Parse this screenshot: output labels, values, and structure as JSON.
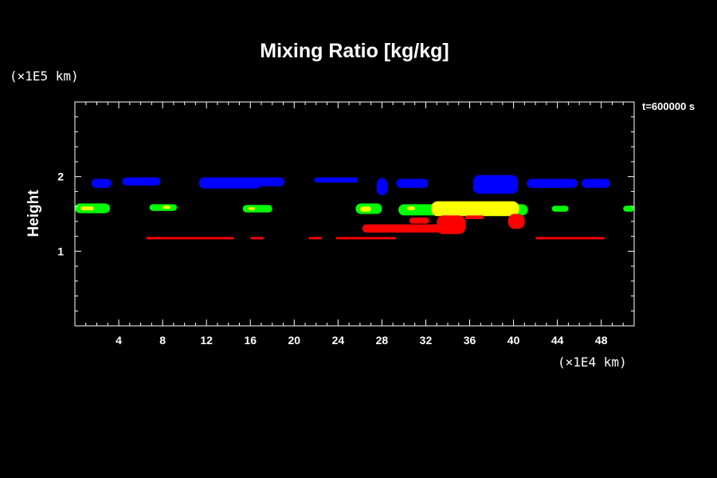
{
  "chart_data": {
    "type": "heatmap",
    "title": "Mixing Ratio [kg/kg]",
    "ylabel": "Height",
    "x_unit_label": "(×1E4 km)",
    "y_unit_label": "(×1E5 km)",
    "time_label": "t=600000 s",
    "xlim": [
      0,
      51
    ],
    "ylim": [
      0,
      3
    ],
    "x_ticks": [
      "4",
      "8",
      "12",
      "16",
      "20",
      "24",
      "28",
      "32",
      "36",
      "40",
      "44",
      "48"
    ],
    "y_ticks": [
      "1",
      "2"
    ],
    "colors": {
      "background": "#000000",
      "axis": "#ffffff",
      "level1": "#ff0000",
      "level2": "#00ff00",
      "level3": "#ffff00",
      "level4": "#0000ff"
    },
    "regions": [
      {
        "color": "#0000ff",
        "x": [
          1.5,
          3.3
        ],
        "y": [
          1.85,
          1.97
        ]
      },
      {
        "color": "#0000ff",
        "x": [
          4.3,
          7.8
        ],
        "y": [
          1.88,
          1.99
        ]
      },
      {
        "color": "#0000ff",
        "x": [
          11.3,
          17.0
        ],
        "y": [
          1.84,
          1.99
        ]
      },
      {
        "color": "#0000ff",
        "x": [
          16.3,
          19.1
        ],
        "y": [
          1.87,
          1.99
        ]
      },
      {
        "color": "#0000ff",
        "x": [
          21.8,
          25.8
        ],
        "y": [
          1.92,
          1.99
        ]
      },
      {
        "color": "#0000ff",
        "x": [
          27.5,
          28.5
        ],
        "y": [
          1.75,
          1.98
        ]
      },
      {
        "color": "#0000ff",
        "x": [
          29.3,
          32.2
        ],
        "y": [
          1.85,
          1.97
        ]
      },
      {
        "color": "#0000ff",
        "x": [
          36.3,
          40.4
        ],
        "y": [
          1.77,
          2.02
        ]
      },
      {
        "color": "#0000ff",
        "x": [
          41.2,
          45.8
        ],
        "y": [
          1.85,
          1.97
        ]
      },
      {
        "color": "#0000ff",
        "x": [
          46.2,
          48.8
        ],
        "y": [
          1.85,
          1.97
        ]
      },
      {
        "color": "#00ff00",
        "x": [
          0.0,
          3.2
        ],
        "y": [
          1.51,
          1.64
        ]
      },
      {
        "color": "#00ff00",
        "x": [
          6.8,
          9.3
        ],
        "y": [
          1.54,
          1.63
        ]
      },
      {
        "color": "#00ff00",
        "x": [
          15.3,
          18.0
        ],
        "y": [
          1.52,
          1.62
        ]
      },
      {
        "color": "#00ff00",
        "x": [
          25.6,
          28.0
        ],
        "y": [
          1.5,
          1.64
        ]
      },
      {
        "color": "#00ff00",
        "x": [
          29.5,
          41.3
        ],
        "y": [
          1.48,
          1.63
        ]
      },
      {
        "color": "#00ff00",
        "x": [
          43.5,
          45.0
        ],
        "y": [
          1.53,
          1.61
        ]
      },
      {
        "color": "#00ff00",
        "x": [
          50.0,
          51.0
        ],
        "y": [
          1.53,
          1.61
        ]
      },
      {
        "color": "#ffff00",
        "x": [
          0.5,
          1.7
        ],
        "y": [
          1.55,
          1.6
        ]
      },
      {
        "color": "#ffff00",
        "x": [
          8.0,
          8.7
        ],
        "y": [
          1.57,
          1.61
        ]
      },
      {
        "color": "#ffff00",
        "x": [
          15.8,
          16.4
        ],
        "y": [
          1.55,
          1.59
        ]
      },
      {
        "color": "#ffff00",
        "x": [
          26.0,
          27.0
        ],
        "y": [
          1.53,
          1.6
        ]
      },
      {
        "color": "#ffff00",
        "x": [
          30.3,
          31.0
        ],
        "y": [
          1.55,
          1.6
        ]
      },
      {
        "color": "#ffff00",
        "x": [
          32.5,
          40.5
        ],
        "y": [
          1.47,
          1.67
        ]
      },
      {
        "color": "#ff0000",
        "x": [
          6.5,
          14.5
        ],
        "y": [
          1.16,
          1.19
        ]
      },
      {
        "color": "#ff0000",
        "x": [
          16.0,
          17.2
        ],
        "y": [
          1.16,
          1.19
        ]
      },
      {
        "color": "#ff0000",
        "x": [
          21.3,
          22.5
        ],
        "y": [
          1.16,
          1.19
        ]
      },
      {
        "color": "#ff0000",
        "x": [
          23.8,
          29.3
        ],
        "y": [
          1.16,
          1.19
        ]
      },
      {
        "color": "#ff0000",
        "x": [
          26.2,
          33.8
        ],
        "y": [
          1.25,
          1.36
        ]
      },
      {
        "color": "#ff0000",
        "x": [
          30.5,
          32.3
        ],
        "y": [
          1.37,
          1.45
        ]
      },
      {
        "color": "#ff0000",
        "x": [
          33.0,
          35.6
        ],
        "y": [
          1.23,
          1.48
        ]
      },
      {
        "color": "#ff0000",
        "x": [
          35.6,
          37.3
        ],
        "y": [
          1.43,
          1.48
        ]
      },
      {
        "color": "#ff0000",
        "x": [
          39.5,
          41.0
        ],
        "y": [
          1.3,
          1.5
        ]
      },
      {
        "color": "#ff0000",
        "x": [
          42.0,
          48.3
        ],
        "y": [
          1.16,
          1.19
        ]
      }
    ]
  }
}
